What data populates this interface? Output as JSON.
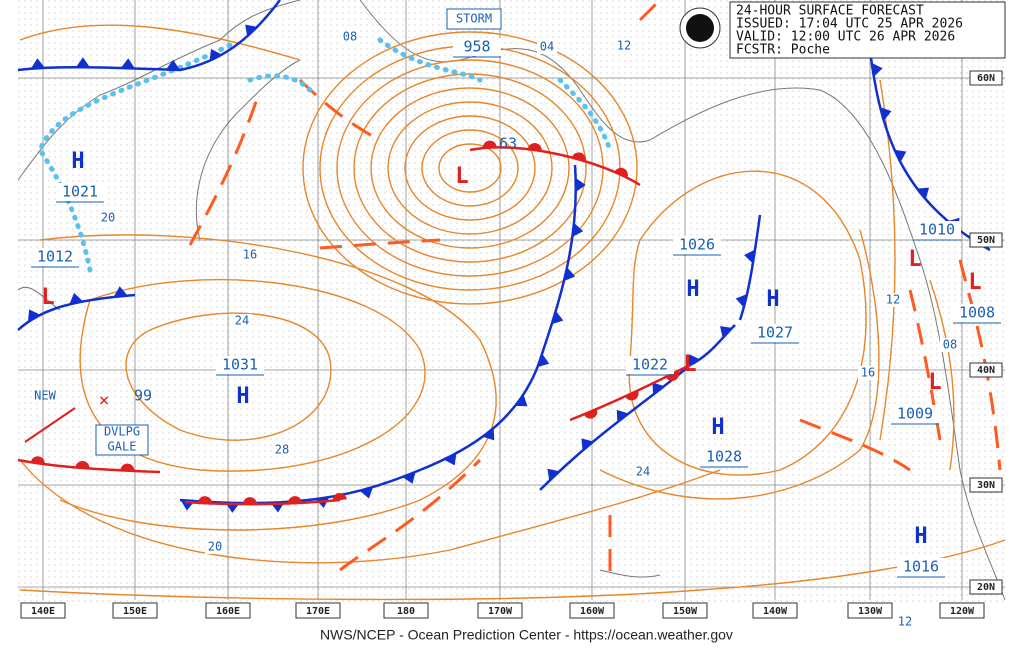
{
  "header": {
    "title": "24-HOUR SURFACE FORECAST",
    "issued": "ISSUED: 17:04 UTC 25 APR 2026",
    "valid": "VALID:  12:00 UTC 26 APR 2026",
    "forecaster": "FCSTR:  Poche"
  },
  "storm_label": "STORM",
  "systems": [
    {
      "symbol": "H",
      "pressure": "1021"
    },
    {
      "symbol": "L",
      "pressure": "1012"
    },
    {
      "symbol": "H",
      "pressure": "1031"
    },
    {
      "symbol": "L",
      "pressure": "958"
    },
    {
      "symbol": "H",
      "pressure": "1026"
    },
    {
      "symbol": "H",
      "pressure": "1027"
    },
    {
      "symbol": "L",
      "pressure": "1022"
    },
    {
      "symbol": "H",
      "pressure": "1028"
    },
    {
      "symbol": "L",
      "pressure": "1010"
    },
    {
      "symbol": "L",
      "pressure": "1008"
    },
    {
      "symbol": "L",
      "pressure": "1009"
    },
    {
      "symbol": "H",
      "pressure": "1016"
    }
  ],
  "annotations": {
    "new": "NEW",
    "new_pressure": "99",
    "gale": [
      "DVLPG",
      "GALE"
    ],
    "storm_wind": "63"
  },
  "isobar_labels": [
    "08",
    "04",
    "12",
    "20",
    "16",
    "24",
    "28",
    "20",
    "24",
    "16",
    "12",
    "08",
    "12"
  ],
  "longitudes": [
    "140E",
    "150E",
    "160E",
    "170E",
    "180",
    "170W",
    "160W",
    "150W",
    "140W",
    "130W",
    "120W"
  ],
  "latitudes": [
    "60N",
    "50N",
    "40N",
    "30N",
    "20N"
  ],
  "footer": "NWS/NCEP - Ocean Prediction Center - https://ocean.weather.gov"
}
